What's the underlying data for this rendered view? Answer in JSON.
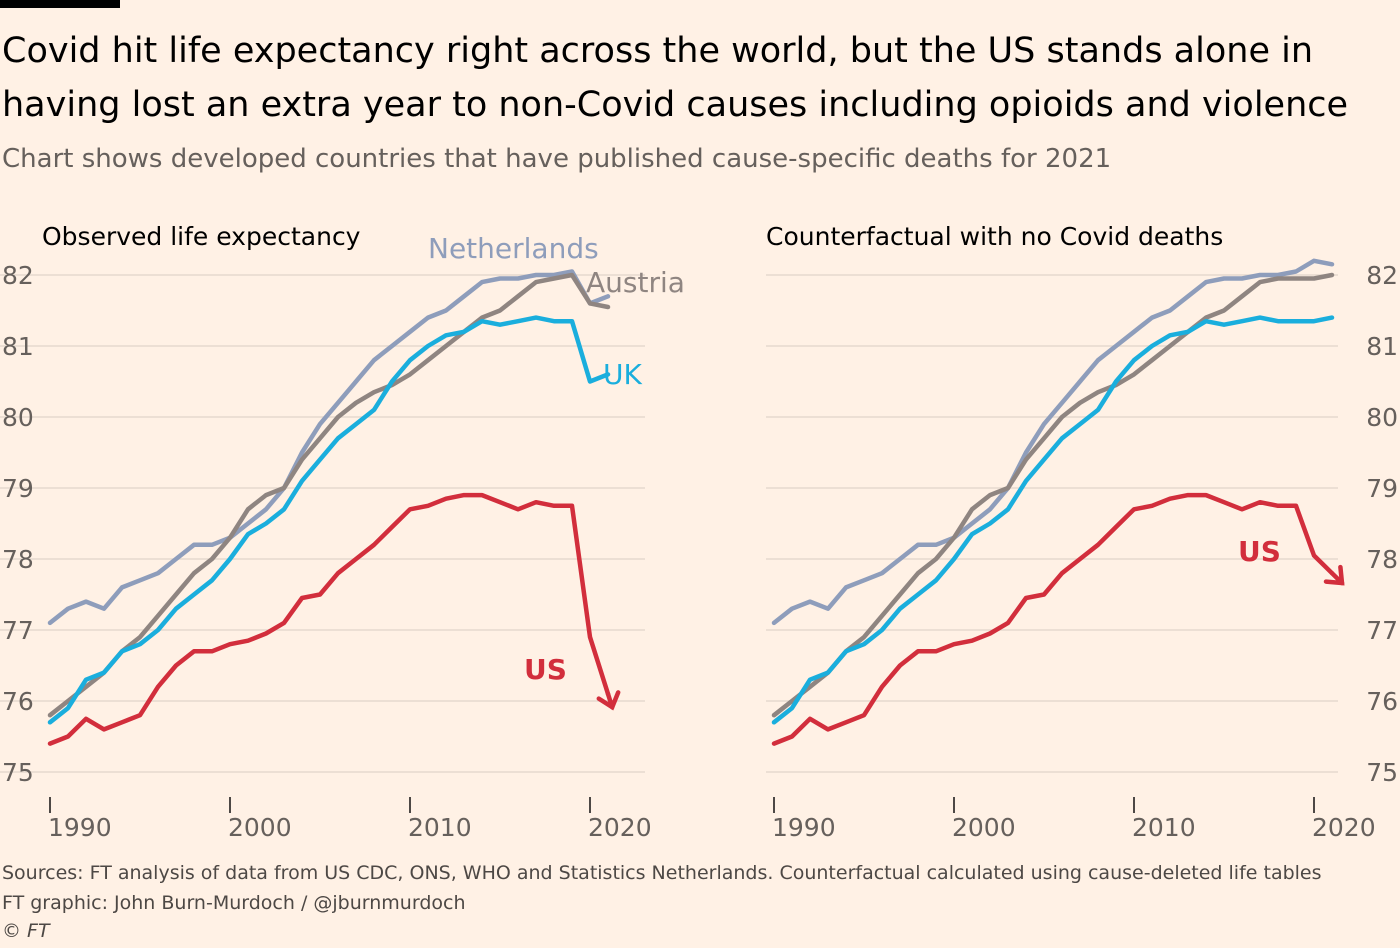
{
  "title": "Covid hit life expectancy right across the world, but the US stands alone in having lost an extra year to non-Covid causes including opioids and violence",
  "subtitle": "Chart shows developed countries that have published cause-specific deaths for 2021",
  "colors": {
    "background": "#FFF1E5",
    "Netherlands": "#8E9DBB",
    "Austria": "#8F8581",
    "UK": "#1AAEDD",
    "US": "#D22E3C",
    "grid": "#E6D9CE",
    "axis_text": "#66605c"
  },
  "chart_data": [
    {
      "type": "line",
      "title": "Observed life expectancy",
      "x_ticks": [
        1990,
        2000,
        2010,
        2020
      ],
      "y_ticks": [
        75,
        76,
        77,
        78,
        79,
        80,
        81,
        82
      ],
      "ylim": [
        75,
        82
      ],
      "xlim": [
        1989,
        2022
      ],
      "y_axis_side": "left",
      "grid": true,
      "series": [
        {
          "name": "Netherlands",
          "x": [
            1990,
            1991,
            1992,
            1993,
            1994,
            1995,
            1996,
            1997,
            1998,
            1999,
            2000,
            2001,
            2002,
            2003,
            2004,
            2005,
            2006,
            2007,
            2008,
            2009,
            2010,
            2011,
            2012,
            2013,
            2014,
            2015,
            2016,
            2017,
            2018,
            2019,
            2020,
            2021
          ],
          "values": [
            77.1,
            77.3,
            77.4,
            77.3,
            77.6,
            77.7,
            77.8,
            78.0,
            78.2,
            78.2,
            78.3,
            78.5,
            78.7,
            79.0,
            79.5,
            79.9,
            80.2,
            80.5,
            80.8,
            81.0,
            81.2,
            81.4,
            81.5,
            81.7,
            81.9,
            81.95,
            81.95,
            82.0,
            82.0,
            82.05,
            81.6,
            81.7
          ]
        },
        {
          "name": "Austria",
          "x": [
            1990,
            1991,
            1992,
            1993,
            1994,
            1995,
            1996,
            1997,
            1998,
            1999,
            2000,
            2001,
            2002,
            2003,
            2004,
            2005,
            2006,
            2007,
            2008,
            2009,
            2010,
            2011,
            2012,
            2013,
            2014,
            2015,
            2016,
            2017,
            2018,
            2019,
            2020,
            2021
          ],
          "values": [
            75.8,
            76.0,
            76.2,
            76.4,
            76.7,
            76.9,
            77.2,
            77.5,
            77.8,
            78.0,
            78.3,
            78.7,
            78.9,
            79.0,
            79.4,
            79.7,
            80.0,
            80.2,
            80.35,
            80.45,
            80.6,
            80.8,
            81.0,
            81.2,
            81.4,
            81.5,
            81.7,
            81.9,
            81.95,
            82.0,
            81.6,
            81.55
          ]
        },
        {
          "name": "UK",
          "x": [
            1990,
            1991,
            1992,
            1993,
            1994,
            1995,
            1996,
            1997,
            1998,
            1999,
            2000,
            2001,
            2002,
            2003,
            2004,
            2005,
            2006,
            2007,
            2008,
            2009,
            2010,
            2011,
            2012,
            2013,
            2014,
            2015,
            2016,
            2017,
            2018,
            2019,
            2020,
            2021
          ],
          "values": [
            75.7,
            75.9,
            76.3,
            76.4,
            76.7,
            76.8,
            77.0,
            77.3,
            77.5,
            77.7,
            78.0,
            78.35,
            78.5,
            78.7,
            79.1,
            79.4,
            79.7,
            79.9,
            80.1,
            80.5,
            80.8,
            81.0,
            81.15,
            81.2,
            81.35,
            81.3,
            81.35,
            81.4,
            81.35,
            81.35,
            80.5,
            80.6
          ]
        },
        {
          "name": "US",
          "x": [
            1990,
            1991,
            1992,
            1993,
            1994,
            1995,
            1996,
            1997,
            1998,
            1999,
            2000,
            2001,
            2002,
            2003,
            2004,
            2005,
            2006,
            2007,
            2008,
            2009,
            2010,
            2011,
            2012,
            2013,
            2014,
            2015,
            2016,
            2017,
            2018,
            2019,
            2020,
            2021
          ],
          "values": [
            75.4,
            75.5,
            75.75,
            75.6,
            75.7,
            75.8,
            76.2,
            76.5,
            76.7,
            76.7,
            76.8,
            76.85,
            76.95,
            77.1,
            77.45,
            77.5,
            77.8,
            78.0,
            78.2,
            78.45,
            78.7,
            78.75,
            78.85,
            78.9,
            78.9,
            78.8,
            78.7,
            78.8,
            78.75,
            78.75,
            76.9,
            76.1
          ]
        }
      ],
      "series_labels": [
        "Netherlands",
        "Austria",
        "UK",
        "US"
      ]
    },
    {
      "type": "line",
      "title": "Counterfactual with no Covid deaths",
      "x_ticks": [
        1990,
        2000,
        2010,
        2020
      ],
      "y_ticks": [
        75,
        76,
        77,
        78,
        79,
        80,
        81,
        82
      ],
      "ylim": [
        75,
        82
      ],
      "xlim": [
        1989,
        2022
      ],
      "y_axis_side": "right",
      "grid": true,
      "series": [
        {
          "name": "Netherlands",
          "x": [
            1990,
            1991,
            1992,
            1993,
            1994,
            1995,
            1996,
            1997,
            1998,
            1999,
            2000,
            2001,
            2002,
            2003,
            2004,
            2005,
            2006,
            2007,
            2008,
            2009,
            2010,
            2011,
            2012,
            2013,
            2014,
            2015,
            2016,
            2017,
            2018,
            2019,
            2020,
            2021
          ],
          "values": [
            77.1,
            77.3,
            77.4,
            77.3,
            77.6,
            77.7,
            77.8,
            78.0,
            78.2,
            78.2,
            78.3,
            78.5,
            78.7,
            79.0,
            79.5,
            79.9,
            80.2,
            80.5,
            80.8,
            81.0,
            81.2,
            81.4,
            81.5,
            81.7,
            81.9,
            81.95,
            81.95,
            82.0,
            82.0,
            82.05,
            82.2,
            82.15
          ]
        },
        {
          "name": "Austria",
          "x": [
            1990,
            1991,
            1992,
            1993,
            1994,
            1995,
            1996,
            1997,
            1998,
            1999,
            2000,
            2001,
            2002,
            2003,
            2004,
            2005,
            2006,
            2007,
            2008,
            2009,
            2010,
            2011,
            2012,
            2013,
            2014,
            2015,
            2016,
            2017,
            2018,
            2019,
            2020,
            2021
          ],
          "values": [
            75.8,
            76.0,
            76.2,
            76.4,
            76.7,
            76.9,
            77.2,
            77.5,
            77.8,
            78.0,
            78.3,
            78.7,
            78.9,
            79.0,
            79.4,
            79.7,
            80.0,
            80.2,
            80.35,
            80.45,
            80.6,
            80.8,
            81.0,
            81.2,
            81.4,
            81.5,
            81.7,
            81.9,
            81.95,
            81.95,
            81.95,
            82.0
          ]
        },
        {
          "name": "UK",
          "x": [
            1990,
            1991,
            1992,
            1993,
            1994,
            1995,
            1996,
            1997,
            1998,
            1999,
            2000,
            2001,
            2002,
            2003,
            2004,
            2005,
            2006,
            2007,
            2008,
            2009,
            2010,
            2011,
            2012,
            2013,
            2014,
            2015,
            2016,
            2017,
            2018,
            2019,
            2020,
            2021
          ],
          "values": [
            75.7,
            75.9,
            76.3,
            76.4,
            76.7,
            76.8,
            77.0,
            77.3,
            77.5,
            77.7,
            78.0,
            78.35,
            78.5,
            78.7,
            79.1,
            79.4,
            79.7,
            79.9,
            80.1,
            80.5,
            80.8,
            81.0,
            81.15,
            81.2,
            81.35,
            81.3,
            81.35,
            81.4,
            81.35,
            81.35,
            81.35,
            81.4
          ]
        },
        {
          "name": "US",
          "x": [
            1990,
            1991,
            1992,
            1993,
            1994,
            1995,
            1996,
            1997,
            1998,
            1999,
            2000,
            2001,
            2002,
            2003,
            2004,
            2005,
            2006,
            2007,
            2008,
            2009,
            2010,
            2011,
            2012,
            2013,
            2014,
            2015,
            2016,
            2017,
            2018,
            2019,
            2020,
            2021
          ],
          "values": [
            75.4,
            75.5,
            75.75,
            75.6,
            75.7,
            75.8,
            76.2,
            76.5,
            76.7,
            76.7,
            76.8,
            76.85,
            76.95,
            77.1,
            77.45,
            77.5,
            77.8,
            78.0,
            78.2,
            78.45,
            78.7,
            78.75,
            78.85,
            78.9,
            78.9,
            78.8,
            78.7,
            78.8,
            78.75,
            78.75,
            78.05,
            77.8
          ]
        }
      ],
      "series_labels": [
        "US"
      ]
    }
  ],
  "footer": {
    "sources": "Sources: FT analysis of data from US CDC, ONS, WHO and Statistics Netherlands. Counterfactual calculated using cause-deleted life tables",
    "credit": "FT graphic: John Burn-Murdoch / @jburnmurdoch",
    "copyright": "© FT"
  }
}
